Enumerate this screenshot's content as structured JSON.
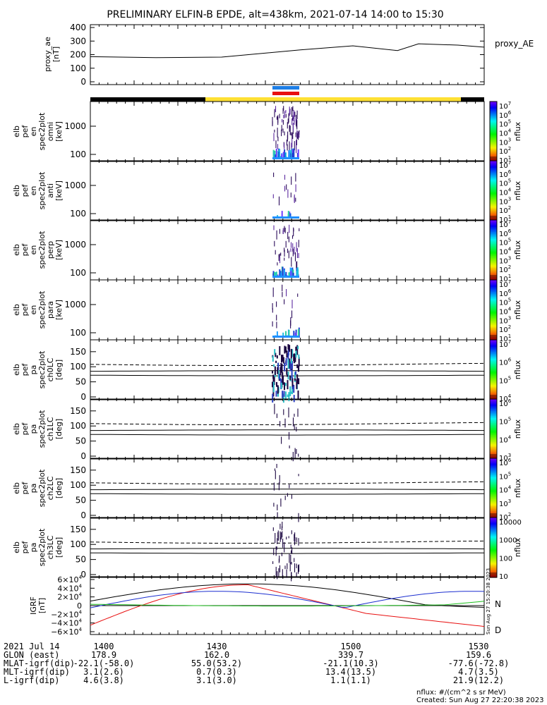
{
  "title": "PRELIMINARY ELFIN-B EPDE, alt=438km, 2021-07-14 14:00 to 15:30",
  "colors": {
    "black": "#000000",
    "yellow": "#ffe033",
    "blue": "#1e7fe6",
    "red": "#e81010",
    "green": "#1fbf1f",
    "purple": "#3a0f7a"
  },
  "chart_data": {
    "type": "line",
    "panels": [
      {
        "id": "proxy_ae",
        "ylabel": [
          "proxy_ae",
          "[nT]"
        ],
        "ylim": [
          0,
          400
        ],
        "yticks": [
          "400",
          "300",
          "200",
          "100",
          "0"
        ],
        "legend": "proxy_AE",
        "series": [
          {
            "x": [
              14.0,
              14.25,
              14.5,
              14.8,
              15.0,
              15.17,
              15.25,
              15.4,
              15.5
            ],
            "y": [
              185,
              178,
              182,
              235,
              265,
              230,
              280,
              270,
              255
            ]
          }
        ]
      },
      {
        "id": "en_omni",
        "ylabel": [
          "elb",
          "pef",
          "en",
          "spec2plot",
          "omni",
          "[keV]"
        ],
        "yscale": "log",
        "yticks": [
          "1000",
          "100"
        ],
        "cbar": "spec7"
      },
      {
        "id": "en_anti",
        "ylabel": [
          "elb",
          "pef",
          "en",
          "spec2plot",
          "anti",
          "[keV]"
        ],
        "yscale": "log",
        "yticks": [
          "1000",
          "100"
        ],
        "cbar": "spec7"
      },
      {
        "id": "en_perp",
        "ylabel": [
          "elb",
          "pef",
          "en",
          "spec2plot",
          "perp",
          "[keV]"
        ],
        "yscale": "log",
        "yticks": [
          "1000",
          "100"
        ],
        "cbar": "spec7"
      },
      {
        "id": "en_para",
        "ylabel": [
          "elb",
          "pef",
          "en",
          "spec2plot",
          "para",
          "[keV]"
        ],
        "yscale": "log",
        "yticks": [
          "1000",
          "100"
        ],
        "cbar": "spec7"
      },
      {
        "id": "pa_ch0",
        "ylabel": [
          "elb",
          "pef",
          "pa",
          "spec2plot",
          "ch0LC",
          "[deg]"
        ],
        "ylim": [
          0,
          180
        ],
        "yticks": [
          "150",
          "100",
          "50",
          "0"
        ],
        "cbar": "pa0"
      },
      {
        "id": "pa_ch1",
        "ylabel": [
          "elb",
          "pef",
          "pa",
          "spec2plot",
          "ch1LC",
          "[deg]"
        ],
        "ylim": [
          0,
          180
        ],
        "yticks": [
          "150",
          "100",
          "50",
          "0"
        ],
        "cbar": "pa1"
      },
      {
        "id": "pa_ch2",
        "ylabel": [
          "elb",
          "pef",
          "pa",
          "spec2plot",
          "ch2LC",
          "[deg]"
        ],
        "ylim": [
          0,
          180
        ],
        "yticks": [
          "150",
          "100",
          "50",
          "0"
        ],
        "cbar": "pa2"
      },
      {
        "id": "pa_ch3",
        "ylabel": [
          "elb",
          "pef",
          "pa",
          "spec2plot",
          "ch3LC",
          "[deg]"
        ],
        "ylim": [
          0,
          180
        ],
        "yticks": [
          "150",
          "100",
          "50",
          "0"
        ],
        "cbar": "pa3"
      },
      {
        "id": "igrf",
        "ylabel": [
          "IGRF",
          "[nT]"
        ],
        "ylim": [
          -60000,
          60000
        ],
        "legend": [
          "N",
          "D"
        ]
      }
    ],
    "xlabel_rows": [
      [
        "2021 Jul 14",
        "1400",
        "1430",
        "1500",
        "1530"
      ],
      [
        "GLON (east)",
        "178.9",
        "162.0",
        "339.7",
        "159.6"
      ],
      [
        "MLAT-igrf(dip)",
        "-22.1(-58.0)",
        "55.0(53.2)",
        "-21.1(10.3)",
        "-77.6(-72.8)"
      ],
      [
        "MLT-igrf(dip)",
        "3.1(2.6)",
        "0.7(0.3)",
        "13.4(13.5)",
        "4.7(3.5)"
      ],
      [
        "L-igrf(dip)",
        "4.6(3.8)",
        "3.1(3.0)",
        "1.1(1.1)",
        "21.9(12.2)"
      ]
    ],
    "cbar_label": "nflux",
    "cbar_ticks": {
      "spec7": [
        "10",
        "10",
        "10",
        "10",
        "10",
        "10",
        "10"
      ],
      "spec7_exp": [
        "7",
        "6",
        "5",
        "4",
        "3",
        "2",
        "1"
      ],
      "pa0": [
        "10",
        "10",
        "10",
        "10"
      ],
      "pa0_exp": [
        "7",
        "6",
        "5",
        "4"
      ],
      "pa1": [
        "10",
        "10",
        "10",
        "10"
      ],
      "pa1_exp": [
        "6",
        "5",
        "4",
        "3"
      ],
      "pa2": [
        "10",
        "10",
        "10",
        "10",
        "10"
      ],
      "pa2_exp": [
        "6",
        "5",
        "4",
        "3",
        "2"
      ],
      "pa3": [
        "10000",
        "1000",
        "100",
        "10"
      ]
    }
  },
  "footer": {
    "units": "nflux: #/(cm^2 s sr MeV)",
    "created": "Created: Sun Aug 27 22:20:38 2023",
    "side_stamp": "Sun Aug 27 15:20:38 2023"
  }
}
